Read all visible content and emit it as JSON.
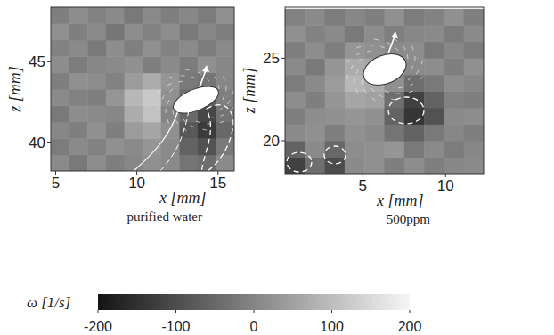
{
  "chart_data": [
    {
      "type": "heatmap",
      "title": "purified water",
      "x_label": "x [mm]",
      "y_label": "z [mm]",
      "xlim": [
        4.7,
        16
      ],
      "ylim": [
        38.2,
        48.4
      ],
      "xticks": [
        5,
        10,
        15
      ],
      "yticks": [
        40,
        45
      ],
      "x": [
        5.27,
        6.4,
        7.53,
        8.66,
        9.79,
        10.92,
        12.05,
        13.18,
        14.31,
        15.44
      ],
      "y": [
        38.71,
        39.73,
        40.75,
        41.77,
        42.79,
        43.81,
        44.83,
        45.85,
        46.87,
        47.89
      ],
      "values": [
        [
          10,
          -20,
          15,
          -10,
          5,
          20,
          10,
          -30,
          -40,
          10
        ],
        [
          -15,
          10,
          -5,
          20,
          10,
          30,
          10,
          -60,
          -90,
          -20
        ],
        [
          5,
          -10,
          20,
          -10,
          40,
          60,
          20,
          -80,
          -130,
          -50
        ],
        [
          -20,
          15,
          10,
          5,
          70,
          110,
          0,
          -50,
          -110,
          -30
        ],
        [
          10,
          -5,
          -10,
          30,
          90,
          120,
          20,
          -40,
          -70,
          -10
        ],
        [
          -10,
          20,
          15,
          -5,
          40,
          70,
          30,
          -20,
          -30,
          5
        ],
        [
          15,
          -15,
          5,
          10,
          20,
          -10,
          10,
          -15,
          20,
          5
        ],
        [
          -5,
          10,
          -20,
          15,
          -10,
          20,
          -5,
          10,
          -15,
          10
        ],
        [
          20,
          -10,
          10,
          -25,
          15,
          -5,
          15,
          -20,
          5,
          -10
        ],
        [
          -10,
          15,
          -5,
          10,
          -20,
          10,
          -10,
          5,
          -15,
          20
        ]
      ]
    },
    {
      "type": "heatmap",
      "title": "500ppm",
      "x_label": "x [mm]",
      "y_label": "z [mm]",
      "xlim": [
        0.3,
        12.3
      ],
      "ylim": [
        18,
        28.1
      ],
      "xticks": [
        5,
        10
      ],
      "yticks": [
        20,
        25
      ],
      "x": [
        0.9,
        2.1,
        3.3,
        4.5,
        5.7,
        6.9,
        8.1,
        9.3,
        10.5,
        11.7
      ],
      "y": [
        18.5,
        19.5,
        20.5,
        21.5,
        22.5,
        23.5,
        24.5,
        25.5,
        26.5,
        27.5
      ],
      "values": [
        [
          -120,
          -40,
          -100,
          10,
          20,
          -10,
          15,
          -10,
          5,
          10
        ],
        [
          -60,
          10,
          -50,
          15,
          20,
          30,
          -20,
          10,
          -15,
          5
        ],
        [
          10,
          20,
          -10,
          20,
          10,
          -30,
          -60,
          -20,
          5,
          -10
        ],
        [
          -10,
          15,
          20,
          30,
          20,
          -60,
          -140,
          -90,
          10,
          15
        ],
        [
          15,
          -10,
          30,
          60,
          50,
          -40,
          -120,
          -60,
          -5,
          -10
        ],
        [
          -15,
          10,
          40,
          90,
          70,
          20,
          -40,
          -20,
          15,
          5
        ],
        [
          10,
          -20,
          30,
          70,
          60,
          40,
          10,
          15,
          -10,
          20
        ],
        [
          -10,
          15,
          -10,
          30,
          20,
          10,
          15,
          -20,
          5,
          -15
        ],
        [
          20,
          -5,
          10,
          -20,
          15,
          -10,
          5,
          10,
          -15,
          10
        ],
        [
          -5,
          10,
          -15,
          5,
          -10,
          20,
          -15,
          -5,
          20,
          -10
        ]
      ]
    }
  ],
  "colorbar": {
    "label": "ω [1/s]",
    "range": [
      -200,
      200
    ],
    "ticks": [
      -200,
      -100,
      0,
      100,
      200
    ]
  }
}
